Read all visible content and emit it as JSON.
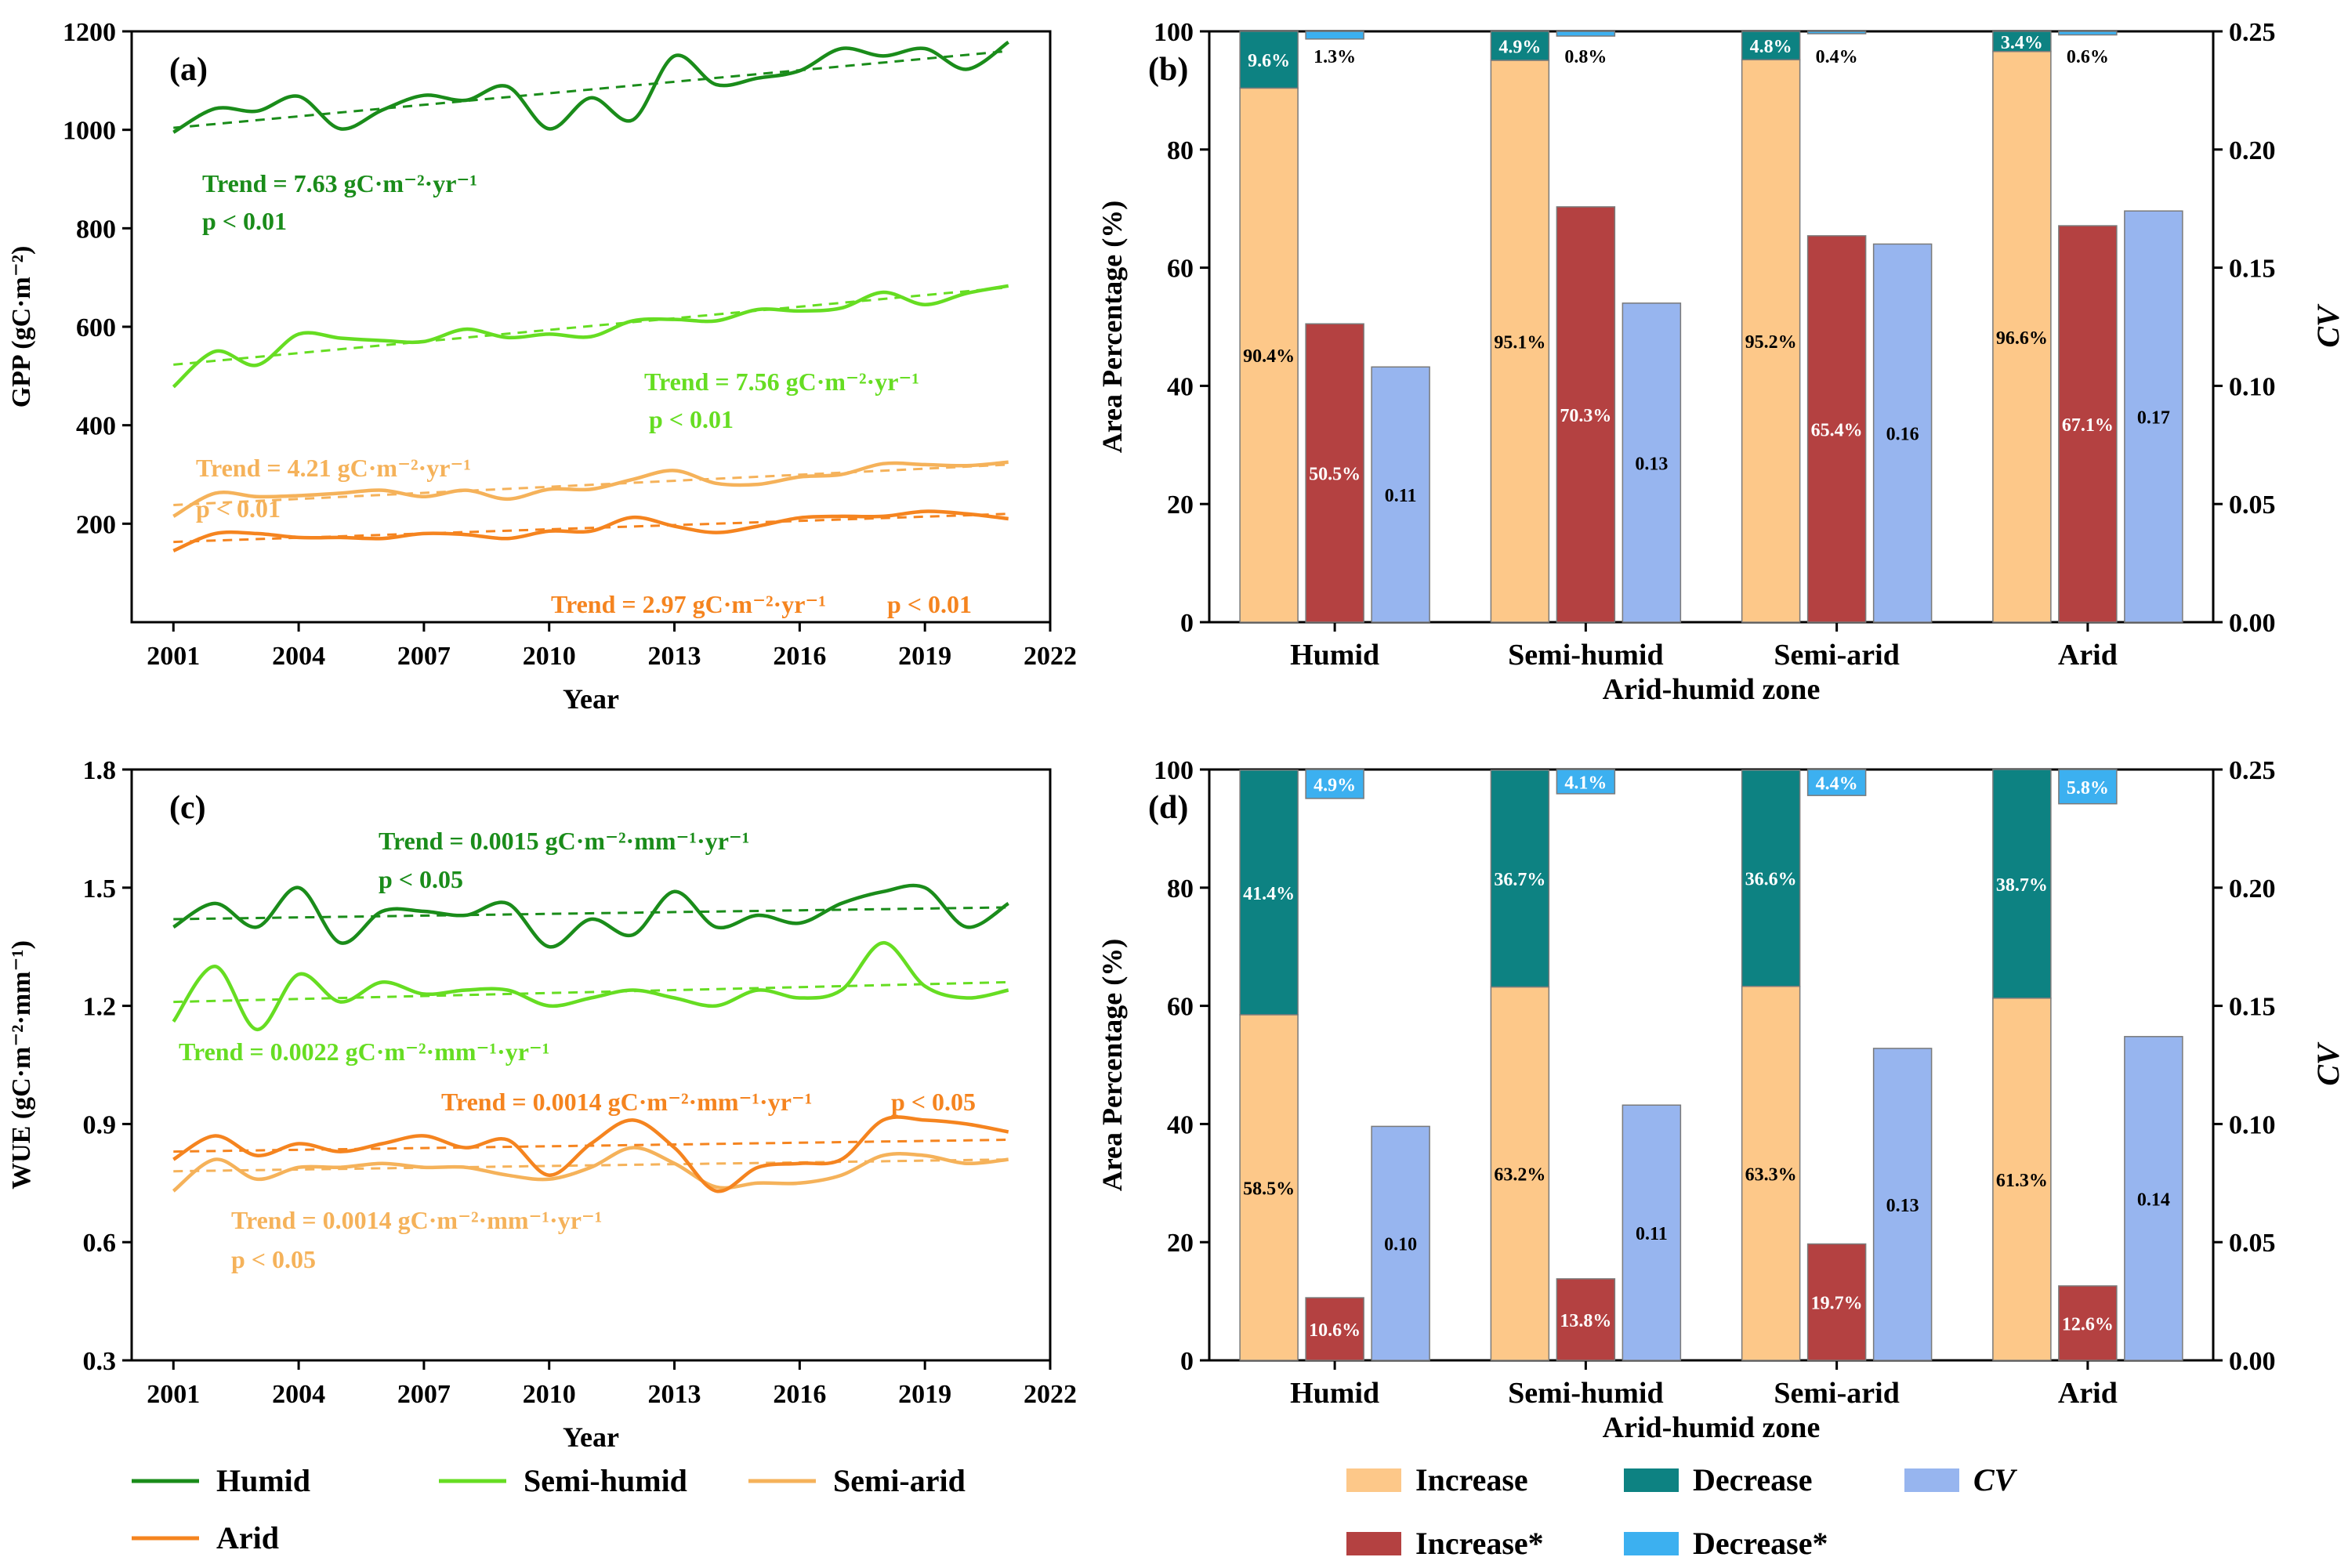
{
  "colors": {
    "humid": "#1a8c1a",
    "semi_humid": "#66dd22",
    "semi_arid": "#f5b25a",
    "arid": "#f5841f",
    "increase": "#fdc889",
    "decrease": "#0d8282",
    "cv": "#97b5ef",
    "increase_sig": "#b44141",
    "decrease_sig": "#3cb0f0",
    "edge": "#7a7a7a"
  },
  "chart_data": [
    {
      "id": "a",
      "type": "line",
      "panel_label": "(a)",
      "xlabel": "Year",
      "ylabel": "GPP (gC·m⁻²)",
      "xlim": [
        2000,
        2022
      ],
      "ylim": [
        0,
        1200
      ],
      "xticks": [
        "2001",
        "2004",
        "2007",
        "2010",
        "2013",
        "2016",
        "2019",
        "2022"
      ],
      "yticks": [
        "200",
        "400",
        "600",
        "800",
        "1000",
        "1200"
      ],
      "x": [
        2001,
        2002,
        2003,
        2004,
        2005,
        2006,
        2007,
        2008,
        2009,
        2010,
        2011,
        2012,
        2013,
        2014,
        2015,
        2016,
        2017,
        2018,
        2019,
        2020,
        2021
      ],
      "series": [
        {
          "name": "Humid",
          "color_key": "humid",
          "values": [
            995,
            1043,
            1038,
            1068,
            1002,
            1040,
            1070,
            1060,
            1088,
            1002,
            1065,
            1020,
            1150,
            1092,
            1105,
            1120,
            1165,
            1150,
            1165,
            1123,
            1178
          ],
          "trend": [
            1004,
            1160
          ]
        },
        {
          "name": "Semi-humid",
          "color_key": "semi_humid",
          "values": [
            478,
            550,
            522,
            585,
            577,
            572,
            570,
            595,
            578,
            585,
            580,
            612,
            615,
            612,
            635,
            632,
            638,
            670,
            645,
            668,
            683
          ],
          "trend": [
            523,
            680
          ]
        },
        {
          "name": "Semi-arid",
          "color_key": "semi_arid",
          "values": [
            215,
            262,
            255,
            257,
            262,
            268,
            255,
            268,
            250,
            270,
            270,
            290,
            308,
            282,
            280,
            295,
            300,
            322,
            320,
            318,
            325
          ],
          "trend": [
            238,
            320
          ]
        },
        {
          "name": "Arid",
          "color_key": "arid",
          "values": [
            145,
            180,
            180,
            172,
            172,
            170,
            180,
            178,
            170,
            185,
            185,
            213,
            195,
            182,
            195,
            212,
            215,
            215,
            225,
            220,
            210
          ],
          "trend": [
            163,
            220
          ]
        }
      ],
      "annotations": [
        {
          "color_key": "humid",
          "line1": "Trend = 7.63 gC·m⁻²·yr⁻¹",
          "line2": "p < 0.01"
        },
        {
          "color_key": "semi_humid",
          "line1": "Trend = 7.56 gC·m⁻²·yr⁻¹",
          "line2": "p < 0.01"
        },
        {
          "color_key": "semi_arid",
          "line1": "Trend = 4.21 gC·m⁻²·yr⁻¹",
          "line2": "p < 0.01"
        },
        {
          "color_key": "arid",
          "line1": "Trend = 2.97 gC·m⁻²·yr⁻¹",
          "line2": "p < 0.01"
        }
      ]
    },
    {
      "id": "b",
      "type": "bar",
      "panel_label": "(b)",
      "xlabel": "Arid-humid zone",
      "ylabel": "Area Percentage (%)",
      "y2label": "CV",
      "ylim": [
        0,
        100
      ],
      "y2lim": [
        0,
        0.25
      ],
      "yticks": [
        "0",
        "20",
        "40",
        "60",
        "80",
        "100"
      ],
      "y2ticks": [
        "0.00",
        "0.05",
        "0.10",
        "0.15",
        "0.20",
        "0.25"
      ],
      "categories": [
        "Humid",
        "Semi-humid",
        "Semi-arid",
        "Arid"
      ],
      "increase": [
        90.4,
        95.1,
        95.2,
        96.6
      ],
      "decrease": [
        9.6,
        4.9,
        4.8,
        3.4
      ],
      "increase_sig": [
        50.5,
        70.3,
        65.4,
        67.1
      ],
      "decrease_sig": [
        1.3,
        0.8,
        0.4,
        0.6
      ],
      "cv": [
        0.108,
        0.135,
        0.16,
        0.174
      ],
      "labels": {
        "increase": [
          "90.4%",
          "95.1%",
          "95.2%",
          "96.6%"
        ],
        "decrease": [
          "9.6%",
          "4.9%",
          "4.8%",
          "3.4%"
        ],
        "increase_sig": [
          "50.5%",
          "70.3%",
          "65.4%",
          "67.1%"
        ],
        "decrease_sig": [
          "1.3%",
          "0.8%",
          "0.4%",
          "0.6%"
        ],
        "cv": [
          "0.11",
          "0.13",
          "0.16",
          "0.17"
        ]
      }
    },
    {
      "id": "c",
      "type": "line",
      "panel_label": "(c)",
      "xlabel": "Year",
      "ylabel": "WUE (gC·m⁻²·mm⁻¹)",
      "xlim": [
        2000,
        2022
      ],
      "ylim": [
        0.3,
        1.8
      ],
      "xticks": [
        "2001",
        "2004",
        "2007",
        "2010",
        "2013",
        "2016",
        "2019",
        "2022"
      ],
      "yticks": [
        "0.3",
        "0.6",
        "0.9",
        "1.2",
        "1.5",
        "1.8"
      ],
      "x": [
        2001,
        2002,
        2003,
        2004,
        2005,
        2006,
        2007,
        2008,
        2009,
        2010,
        2011,
        2012,
        2013,
        2014,
        2015,
        2016,
        2017,
        2018,
        2019,
        2020,
        2021
      ],
      "series": [
        {
          "name": "Humid",
          "color_key": "humid",
          "values": [
            1.4,
            1.46,
            1.4,
            1.5,
            1.36,
            1.44,
            1.44,
            1.43,
            1.46,
            1.35,
            1.42,
            1.38,
            1.49,
            1.4,
            1.43,
            1.41,
            1.46,
            1.49,
            1.5,
            1.4,
            1.46
          ],
          "trend": [
            1.42,
            1.45
          ]
        },
        {
          "name": "Semi-humid",
          "color_key": "semi_humid",
          "values": [
            1.16,
            1.3,
            1.14,
            1.28,
            1.21,
            1.26,
            1.23,
            1.24,
            1.24,
            1.2,
            1.22,
            1.24,
            1.22,
            1.2,
            1.24,
            1.22,
            1.24,
            1.36,
            1.25,
            1.22,
            1.24
          ],
          "trend": [
            1.21,
            1.26
          ]
        },
        {
          "name": "Semi-arid",
          "color_key": "semi_arid",
          "values": [
            0.73,
            0.81,
            0.76,
            0.79,
            0.79,
            0.8,
            0.79,
            0.79,
            0.77,
            0.76,
            0.79,
            0.84,
            0.8,
            0.74,
            0.75,
            0.75,
            0.77,
            0.82,
            0.82,
            0.8,
            0.81
          ],
          "trend": [
            0.78,
            0.81
          ]
        },
        {
          "name": "Arid",
          "color_key": "arid",
          "values": [
            0.81,
            0.87,
            0.82,
            0.85,
            0.83,
            0.85,
            0.87,
            0.84,
            0.86,
            0.77,
            0.85,
            0.91,
            0.84,
            0.73,
            0.79,
            0.8,
            0.81,
            0.91,
            0.91,
            0.9,
            0.88
          ],
          "trend": [
            0.83,
            0.86
          ]
        }
      ],
      "annotations": [
        {
          "color_key": "humid",
          "line1": "Trend = 0.0015 gC·m⁻²·mm⁻¹·yr⁻¹",
          "line2": "p < 0.05"
        },
        {
          "color_key": "semi_humid",
          "line1": "Trend = 0.0022 gC·m⁻²·mm⁻¹·yr⁻¹",
          "line2": ""
        },
        {
          "color_key": "arid",
          "line1": "Trend = 0.0014 gC·m⁻²·mm⁻¹·yr⁻¹",
          "line2": "p < 0.05"
        },
        {
          "color_key": "semi_arid",
          "line1": "Trend = 0.0014 gC·m⁻²·mm⁻¹·yr⁻¹",
          "line2": "p < 0.05"
        }
      ]
    },
    {
      "id": "d",
      "type": "bar",
      "panel_label": "(d)",
      "xlabel": "Arid-humid zone",
      "ylabel": "Area Percentage (%)",
      "y2label": "CV",
      "ylim": [
        0,
        100
      ],
      "y2lim": [
        0,
        0.25
      ],
      "yticks": [
        "0",
        "20",
        "40",
        "60",
        "80",
        "100"
      ],
      "y2ticks": [
        "0.00",
        "0.05",
        "0.10",
        "0.15",
        "0.20",
        "0.25"
      ],
      "categories": [
        "Humid",
        "Semi-humid",
        "Semi-arid",
        "Arid"
      ],
      "increase": [
        58.5,
        63.2,
        63.3,
        61.3
      ],
      "decrease": [
        41.4,
        36.7,
        36.6,
        38.7
      ],
      "increase_sig": [
        10.6,
        13.8,
        19.7,
        12.6
      ],
      "decrease_sig": [
        4.9,
        4.1,
        4.4,
        5.8
      ],
      "cv": [
        0.099,
        0.108,
        0.132,
        0.137
      ],
      "labels": {
        "increase": [
          "58.5%",
          "63.2%",
          "63.3%",
          "61.3%"
        ],
        "decrease": [
          "41.4%",
          "36.7%",
          "36.6%",
          "38.7%"
        ],
        "increase_sig": [
          "10.6%",
          "13.8%",
          "19.7%",
          "12.6%"
        ],
        "decrease_sig": [
          "4.9%",
          "4.1%",
          "4.4%",
          "5.8%"
        ],
        "cv": [
          "0.10",
          "0.11",
          "0.13",
          "0.14"
        ]
      }
    }
  ],
  "legend_lines": [
    {
      "label": "Humid",
      "color_key": "humid"
    },
    {
      "label": "Semi-humid",
      "color_key": "semi_humid"
    },
    {
      "label": "Semi-arid",
      "color_key": "semi_arid"
    },
    {
      "label": "Arid",
      "color_key": "arid"
    }
  ],
  "legend_bars": [
    {
      "label": "Increase",
      "color_key": "increase"
    },
    {
      "label": "Decrease",
      "color_key": "decrease"
    },
    {
      "label": "CV",
      "color_key": "cv"
    },
    {
      "label": "Increase*",
      "color_key": "increase_sig"
    },
    {
      "label": "Decrease*",
      "color_key": "decrease_sig"
    }
  ]
}
